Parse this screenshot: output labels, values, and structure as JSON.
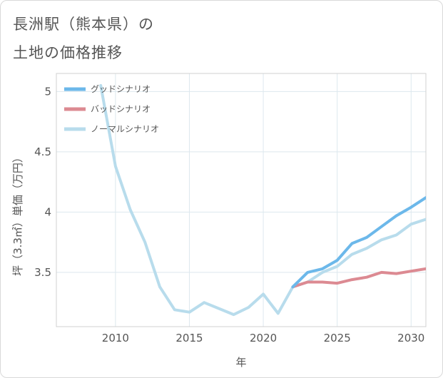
{
  "page": {
    "title_line1": "長洲駅（熊本県）の",
    "title_line2": "土地の価格推移"
  },
  "chart_data": {
    "type": "line",
    "xlabel": "年",
    "ylabel": "坪（3.3㎡）単価（万円）",
    "xlim": [
      2006,
      2031
    ],
    "ylim": [
      3.05,
      5.15
    ],
    "x_ticks": [
      2010,
      2015,
      2020,
      2025,
      2030
    ],
    "y_ticks": [
      3.5,
      4,
      4.5,
      5
    ],
    "x_tick_labels": [
      "2010",
      "2015",
      "2020",
      "2025",
      "2030"
    ],
    "y_tick_labels": [
      "3.5",
      "4",
      "4.5",
      "5"
    ],
    "grid": true,
    "legend_position": "top-left",
    "series": [
      {
        "name": "グッドシナリオ",
        "color": "#6cb8ea",
        "x": [
          2022,
          2023,
          2024,
          2025,
          2026,
          2027,
          2028,
          2029,
          2030,
          2031
        ],
        "y": [
          3.38,
          3.5,
          3.53,
          3.6,
          3.74,
          3.79,
          3.88,
          3.97,
          4.04,
          4.12
        ]
      },
      {
        "name": "バッドシナリオ",
        "color": "#dc8a92",
        "x": [
          2022,
          2023,
          2024,
          2025,
          2026,
          2027,
          2028,
          2029,
          2030,
          2031
        ],
        "y": [
          3.38,
          3.42,
          3.42,
          3.41,
          3.44,
          3.46,
          3.5,
          3.49,
          3.51,
          3.53
        ]
      },
      {
        "name": "ノーマルシナリオ",
        "color": "#b8dcec",
        "x": [
          2009,
          2010,
          2011,
          2012,
          2013,
          2014,
          2015,
          2016,
          2017,
          2018,
          2019,
          2020,
          2021,
          2022,
          2023,
          2024,
          2025,
          2026,
          2027,
          2028,
          2029,
          2030,
          2031
        ],
        "y": [
          5.05,
          4.38,
          4.02,
          3.75,
          3.38,
          3.19,
          3.17,
          3.25,
          3.2,
          3.15,
          3.21,
          3.32,
          3.16,
          3.38,
          3.42,
          3.5,
          3.55,
          3.65,
          3.7,
          3.77,
          3.81,
          3.9,
          3.94
        ]
      }
    ]
  }
}
